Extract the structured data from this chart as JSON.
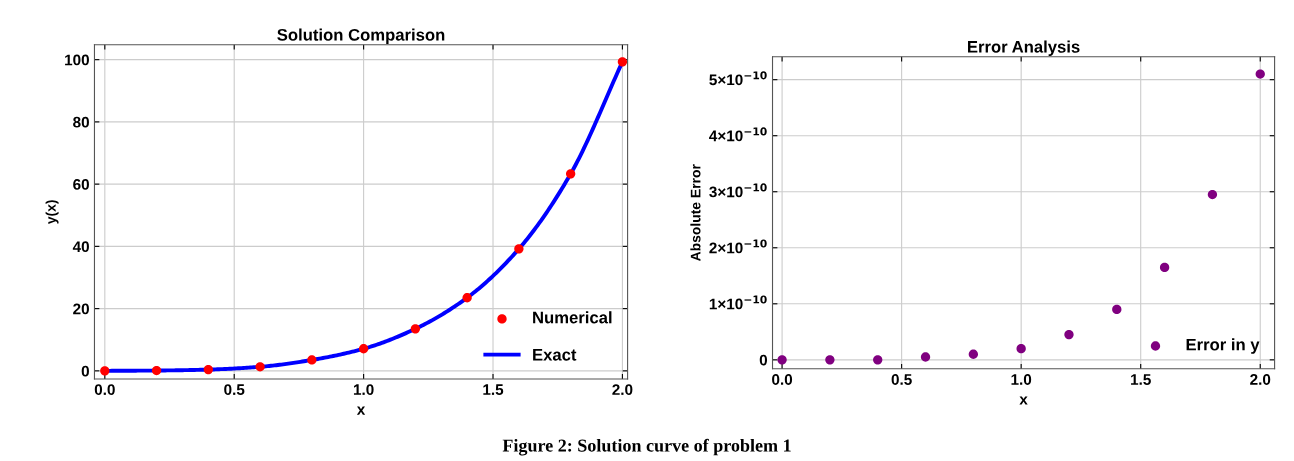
{
  "chart_data": [
    {
      "type": "scatter",
      "title": "Solution Comparison",
      "xlabel": "x",
      "ylabel": "y(x)",
      "xlim": [
        -0.04,
        2.02
      ],
      "xticks": [
        {
          "value": 0,
          "label": "0.0"
        },
        {
          "value": 0.5,
          "label": "0.5"
        },
        {
          "value": 1,
          "label": "1.0"
        },
        {
          "value": 1.5,
          "label": "1.5"
        },
        {
          "value": 2,
          "label": "2.0"
        }
      ],
      "ylim": [
        -2.6,
        104.8
      ],
      "yticks": [
        0,
        20,
        40,
        60,
        80,
        100
      ],
      "grid": true,
      "legend": "bottom right",
      "series": [
        {
          "name": "Numerical",
          "marker": "circle",
          "color": "#ff0000",
          "x": [
            0,
            0.2,
            0.4,
            0.6,
            0.8,
            1.0,
            1.2,
            1.4,
            1.6,
            1.8,
            2.0
          ],
          "values": [
            0,
            0.1,
            0.4,
            1.3,
            3.5,
            7.1,
            13.5,
            23.5,
            39.2,
            63.3,
            99.3
          ]
        },
        {
          "name": "Exact",
          "type": "line",
          "line_style": "solid",
          "color": "#0000ff",
          "x": [
            0,
            0.2,
            0.4,
            0.6,
            0.8,
            1.0,
            1.2,
            1.4,
            1.6,
            1.8,
            2.0
          ],
          "values": [
            0,
            0.1,
            0.4,
            1.3,
            3.5,
            7.1,
            13.5,
            23.5,
            39.2,
            63.3,
            99.3
          ]
        }
      ],
      "annotations": [
        "Figure 2: Solution curve of problem 1"
      ]
    },
    {
      "type": "scatter",
      "title": "Error Analysis",
      "xlabel": "x",
      "ylabel": "Absolute Error",
      "xlim": [
        -0.04,
        2.06
      ],
      "xticks": [
        {
          "value": 0,
          "label": "0.0"
        },
        {
          "value": 0.5,
          "label": "0.5"
        },
        {
          "value": 1,
          "label": "1.0"
        },
        {
          "value": 1.5,
          "label": "1.5"
        },
        {
          "value": 2,
          "label": "2.0"
        }
      ],
      "ylim": [
        -1.6e-11,
        5.41e-10
      ],
      "yticks": [
        0,
        {
          "value": 1e-10,
          "label": "1×10$^{−10}$"
        },
        {
          "value": 2e-10,
          "label": "2×10$^{−10}$"
        },
        {
          "value": 3e-10,
          "label": "3×10$^{−10}$"
        },
        {
          "value": 4e-10,
          "label": "4×10$^{−10}$"
        },
        {
          "value": 5e-10,
          "label": "5×10$^{−10}$"
        }
      ],
      "grid": true,
      "legend": "bottom right",
      "series": [
        {
          "name": "Error in y",
          "marker": "circle",
          "color": "#800080",
          "x": [
            0,
            0.2,
            0.4,
            0.6,
            0.8,
            1.0,
            1.2,
            1.4,
            1.6,
            1.8,
            2.0
          ],
          "values": [
            0,
            0,
            0,
            5e-12,
            1e-11,
            2e-11,
            4.5e-11,
            9e-11,
            1.65e-10,
            2.95e-10,
            5.1e-10
          ]
        }
      ]
    }
  ]
}
